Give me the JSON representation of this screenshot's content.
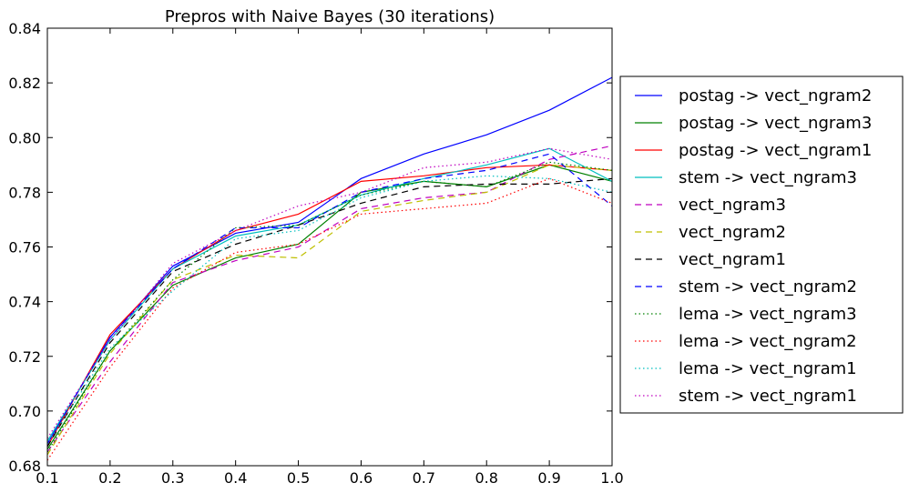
{
  "chart_data": {
    "type": "line",
    "title": "Prepros with Naive Bayes (30 iterations)",
    "xlabel": "",
    "ylabel": "",
    "xlim": [
      0.1,
      1.0
    ],
    "ylim": [
      0.68,
      0.84
    ],
    "x_ticks": [
      "0.1",
      "0.2",
      "0.3",
      "0.4",
      "0.5",
      "0.6",
      "0.7",
      "0.8",
      "0.9",
      "1.0"
    ],
    "y_ticks": [
      "0.68",
      "0.70",
      "0.72",
      "0.74",
      "0.76",
      "0.78",
      "0.80",
      "0.82",
      "0.84"
    ],
    "grid": false,
    "legend_position": "outside-right",
    "x": [
      0.1,
      0.2,
      0.3,
      0.4,
      0.5,
      0.6,
      0.7,
      0.8,
      0.9,
      1.0
    ],
    "series": [
      {
        "name": "postag -> vect_ngram2",
        "color": "#0000ff",
        "dash": "solid",
        "values": [
          0.688,
          0.727,
          0.753,
          0.765,
          0.769,
          0.785,
          0.794,
          0.801,
          0.81,
          0.822
        ]
      },
      {
        "name": "postag -> vect_ngram3",
        "color": "#008000",
        "dash": "solid",
        "values": [
          0.686,
          0.722,
          0.746,
          0.756,
          0.761,
          0.78,
          0.784,
          0.782,
          0.79,
          0.784
        ]
      },
      {
        "name": "postag -> vect_ngram1",
        "color": "#ff0000",
        "dash": "solid",
        "values": [
          0.687,
          0.728,
          0.752,
          0.766,
          0.772,
          0.784,
          0.786,
          0.789,
          0.79,
          0.788
        ]
      },
      {
        "name": "stem -> vect_ngram3",
        "color": "#00bfbf",
        "dash": "solid",
        "values": [
          0.689,
          0.726,
          0.752,
          0.764,
          0.768,
          0.779,
          0.785,
          0.79,
          0.796,
          0.784
        ]
      },
      {
        "name": "vect_ngram3",
        "color": "#bf00bf",
        "dash": "dashed",
        "values": [
          0.685,
          0.718,
          0.747,
          0.755,
          0.76,
          0.774,
          0.778,
          0.78,
          0.792,
          0.797
        ]
      },
      {
        "name": "vect_ngram2",
        "color": "#bfbf00",
        "dash": "dashed",
        "values": [
          0.684,
          0.721,
          0.748,
          0.757,
          0.756,
          0.773,
          0.777,
          0.78,
          0.79,
          0.788
        ]
      },
      {
        "name": "vect_ngram1",
        "color": "#000000",
        "dash": "dashed",
        "values": [
          0.687,
          0.725,
          0.751,
          0.761,
          0.768,
          0.776,
          0.782,
          0.783,
          0.783,
          0.785
        ]
      },
      {
        "name": "stem -> vect_ngram2",
        "color": "#0000ff",
        "dash": "dashed",
        "values": [
          0.688,
          0.727,
          0.752,
          0.767,
          0.767,
          0.78,
          0.785,
          0.788,
          0.794,
          0.775
        ]
      },
      {
        "name": "lema -> vect_ngram3",
        "color": "#008000",
        "dash": "dotted",
        "values": [
          0.685,
          0.722,
          0.748,
          0.767,
          0.768,
          0.779,
          0.784,
          0.782,
          0.791,
          0.788
        ]
      },
      {
        "name": "lema -> vect_ngram2",
        "color": "#ff0000",
        "dash": "dotted",
        "values": [
          0.682,
          0.716,
          0.745,
          0.758,
          0.761,
          0.772,
          0.774,
          0.776,
          0.785,
          0.776
        ]
      },
      {
        "name": "lema -> vect_ngram1",
        "color": "#00bfbf",
        "dash": "dotted",
        "values": [
          0.688,
          0.723,
          0.744,
          0.763,
          0.766,
          0.778,
          0.784,
          0.786,
          0.785,
          0.78
        ]
      },
      {
        "name": "stem -> vect_ngram1",
        "color": "#bf00bf",
        "dash": "dotted",
        "values": [
          0.69,
          0.726,
          0.754,
          0.766,
          0.775,
          0.78,
          0.789,
          0.791,
          0.796,
          0.792
        ]
      }
    ]
  }
}
